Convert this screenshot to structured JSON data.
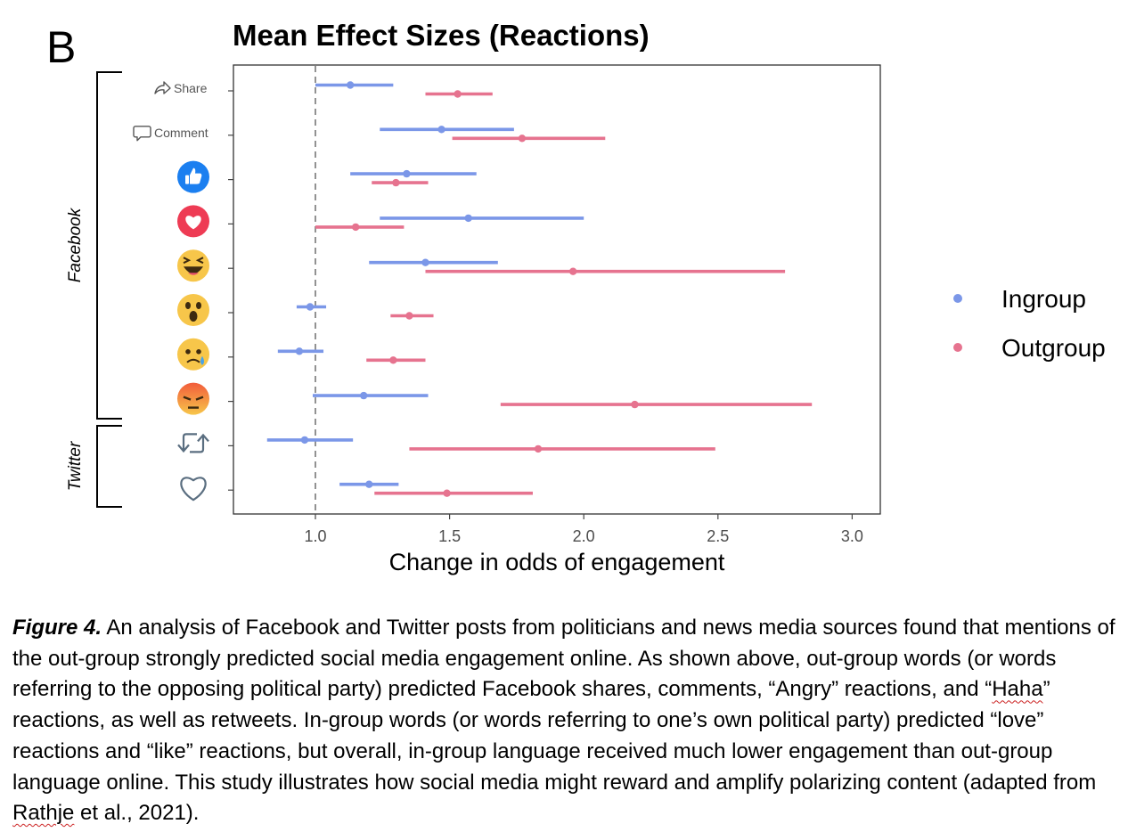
{
  "chart_data": {
    "type": "forest",
    "panel_label": "B",
    "title": "Mean Effect Sizes (Reactions)",
    "xlabel": "Change in odds of engagement",
    "xlim": [
      0.7,
      3.1
    ],
    "xticks": [
      1.0,
      1.5,
      2.0,
      2.5,
      3.0
    ],
    "xtick_labels": [
      "1.0",
      "1.5",
      "2.0",
      "2.5",
      "3.0"
    ],
    "reference_line": 1.0,
    "groups": [
      {
        "name": "Facebook",
        "rows": [
          0,
          1,
          2,
          3,
          4,
          5,
          6,
          7
        ]
      },
      {
        "name": "Twitter",
        "rows": [
          8,
          9
        ]
      }
    ],
    "rows": [
      {
        "label": "Share",
        "icon": "share-icon"
      },
      {
        "label": "Comment",
        "icon": "comment-icon"
      },
      {
        "label": "",
        "icon": "like-reaction-icon"
      },
      {
        "label": "",
        "icon": "love-reaction-icon"
      },
      {
        "label": "",
        "icon": "haha-reaction-icon"
      },
      {
        "label": "",
        "icon": "wow-reaction-icon"
      },
      {
        "label": "",
        "icon": "sad-reaction-icon"
      },
      {
        "label": "",
        "icon": "angry-reaction-icon"
      },
      {
        "label": "",
        "icon": "retweet-icon"
      },
      {
        "label": "",
        "icon": "twitter-heart-icon"
      }
    ],
    "series": [
      {
        "name": "Ingroup",
        "color": "#7b97e8",
        "estimates": [
          1.13,
          1.47,
          1.34,
          1.57,
          1.41,
          0.98,
          0.94,
          1.18,
          0.96,
          1.2
        ],
        "lower": [
          1.0,
          1.24,
          1.13,
          1.24,
          1.2,
          0.93,
          0.86,
          0.99,
          0.82,
          1.09
        ],
        "upper": [
          1.29,
          1.74,
          1.6,
          2.0,
          1.68,
          1.04,
          1.03,
          1.42,
          1.14,
          1.31
        ]
      },
      {
        "name": "Outgroup",
        "color": "#e6738f",
        "estimates": [
          1.53,
          1.77,
          1.3,
          1.15,
          1.96,
          1.35,
          1.29,
          2.19,
          1.83,
          1.49
        ],
        "lower": [
          1.41,
          1.51,
          1.21,
          1.0,
          1.41,
          1.28,
          1.19,
          1.69,
          1.35,
          1.22
        ],
        "upper": [
          1.66,
          2.08,
          1.42,
          1.33,
          2.75,
          1.44,
          1.41,
          2.85,
          2.49,
          1.81
        ]
      }
    ]
  },
  "caption": {
    "label": "Figure 4.",
    "part1": " An analysis of Facebook and Twitter posts from politicians and news media sources found that mentions of the out-group strongly predicted social media engagement online. As shown above, out-group words (or words referring to the opposing political party) predicted Facebook shares, comments, “Angry” reactions, and “",
    "haha_word": "Haha",
    "part2": "” reactions, as well as retweets. In-group words (or words referring to one’s own political party) predicted “love” reactions and “like” reactions, but overall, in-group language received much lower engagement than out-group language online. This study illustrates how social media might reward and amplify polarizing content (adapted from ",
    "author_word": "Rathje",
    "part3": " et al., 2021)."
  }
}
